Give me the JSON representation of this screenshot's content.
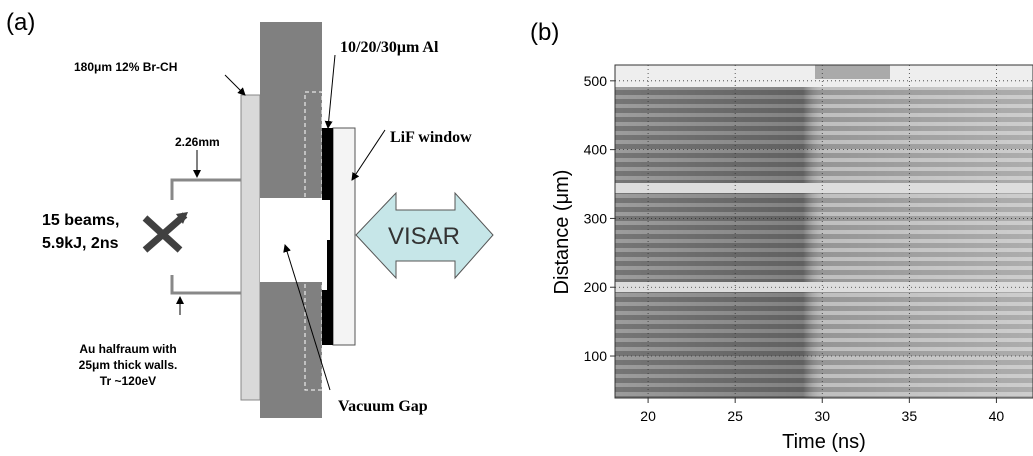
{
  "panel_a": {
    "label": "(a)",
    "texts": {
      "ablator": "180μm 12% Br-CH",
      "aluminum": "10/20/30μm Al",
      "width": "2.26mm",
      "window": "LiF window",
      "beams_1": "15 beams,",
      "beams_2": "5.9kJ, 2ns",
      "visar": "VISAR",
      "hohlraum_1": "Au halfraum with",
      "hohlraum_2": "25μm thick walls.",
      "hohlraum_3": "Tr ~120eV",
      "gap": "Vacuum Gap"
    }
  },
  "panel_b": {
    "label": "(b)",
    "xlabel": "Time (ns)",
    "ylabel": "Distance (μm)",
    "xlim": [
      18.1,
      42.1
    ],
    "ylim": [
      39,
      523
    ],
    "xticks": [
      20,
      25,
      30,
      35,
      40
    ],
    "yticks": [
      100,
      200,
      300,
      400,
      500
    ],
    "grid": true
  }
}
